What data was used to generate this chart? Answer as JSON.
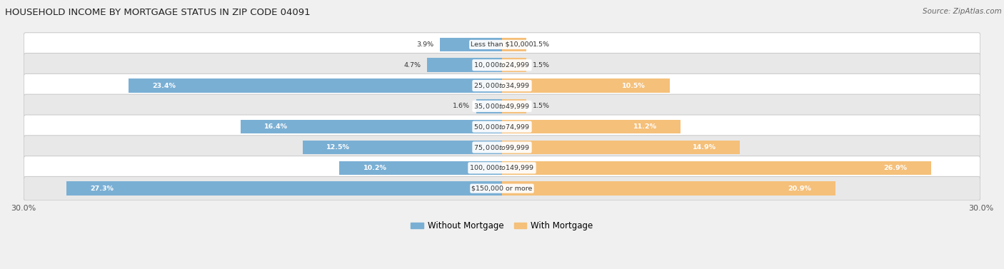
{
  "title": "HOUSEHOLD INCOME BY MORTGAGE STATUS IN ZIP CODE 04091",
  "source": "Source: ZipAtlas.com",
  "categories": [
    "Less than $10,000",
    "$10,000 to $24,999",
    "$25,000 to $34,999",
    "$35,000 to $49,999",
    "$50,000 to $74,999",
    "$75,000 to $99,999",
    "$100,000 to $149,999",
    "$150,000 or more"
  ],
  "without_mortgage": [
    3.9,
    4.7,
    23.4,
    1.6,
    16.4,
    12.5,
    10.2,
    27.3
  ],
  "with_mortgage": [
    1.5,
    1.5,
    10.5,
    1.5,
    11.2,
    14.9,
    26.9,
    20.9
  ],
  "without_mortgage_color": "#7aafd4",
  "with_mortgage_color": "#f5c07a",
  "background_color": "#f0f0f0",
  "xlim": 30.0,
  "legend_labels": [
    "Without Mortgage",
    "With Mortgage"
  ]
}
